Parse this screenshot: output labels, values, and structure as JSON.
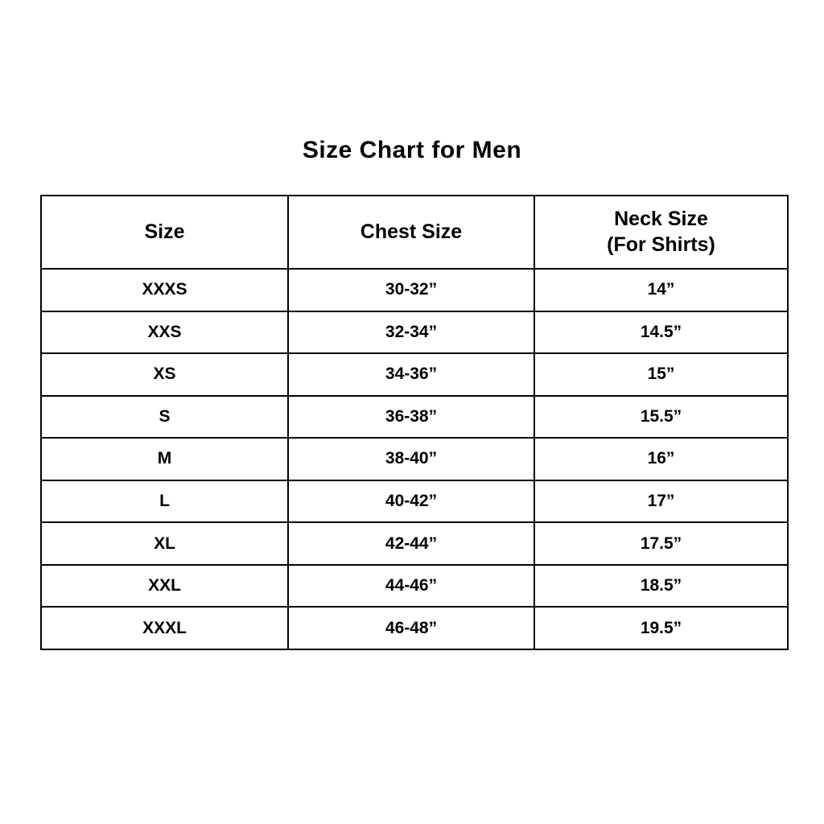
{
  "page": {
    "title": "Size Chart for Men"
  },
  "colors": {
    "background": "#ffffff",
    "text": "#000000",
    "border": "#000000"
  },
  "table": {
    "columns": [
      {
        "label": "Size",
        "sublabel": ""
      },
      {
        "label": "Chest Size",
        "sublabel": ""
      },
      {
        "label": "Neck Size",
        "sublabel": "(For Shirts)"
      }
    ],
    "rows": [
      [
        "XXXS",
        "30-32”",
        "14”"
      ],
      [
        "XXS",
        "32-34”",
        "14.5”"
      ],
      [
        "XS",
        "34-36”",
        "15”"
      ],
      [
        "S",
        "36-38”",
        "15.5”"
      ],
      [
        "M",
        "38-40”",
        "16”"
      ],
      [
        "L",
        "40-42”",
        "17”"
      ],
      [
        "XL",
        "42-44”",
        "17.5”"
      ],
      [
        "XXL",
        "44-46”",
        "18.5”"
      ],
      [
        "XXXL",
        "46-48”",
        "19.5”"
      ]
    ]
  },
  "chart_data": {
    "type": "table",
    "title": "Size Chart for Men",
    "columns": [
      "Size",
      "Chest Size",
      "Neck Size (For Shirts)"
    ],
    "rows": [
      {
        "size": "XXXS",
        "chest_in": "30-32",
        "neck_in": "14"
      },
      {
        "size": "XXS",
        "chest_in": "32-34",
        "neck_in": "14.5"
      },
      {
        "size": "XS",
        "chest_in": "34-36",
        "neck_in": "15"
      },
      {
        "size": "S",
        "chest_in": "36-38",
        "neck_in": "15.5"
      },
      {
        "size": "M",
        "chest_in": "38-40",
        "neck_in": "16"
      },
      {
        "size": "L",
        "chest_in": "40-42",
        "neck_in": "17"
      },
      {
        "size": "XL",
        "chest_in": "42-44",
        "neck_in": "17.5"
      },
      {
        "size": "XXL",
        "chest_in": "44-46",
        "neck_in": "18.5"
      },
      {
        "size": "XXXL",
        "chest_in": "46-48",
        "neck_in": "19.5"
      }
    ],
    "units": "inches",
    "legend_position": "none",
    "grid": true
  }
}
